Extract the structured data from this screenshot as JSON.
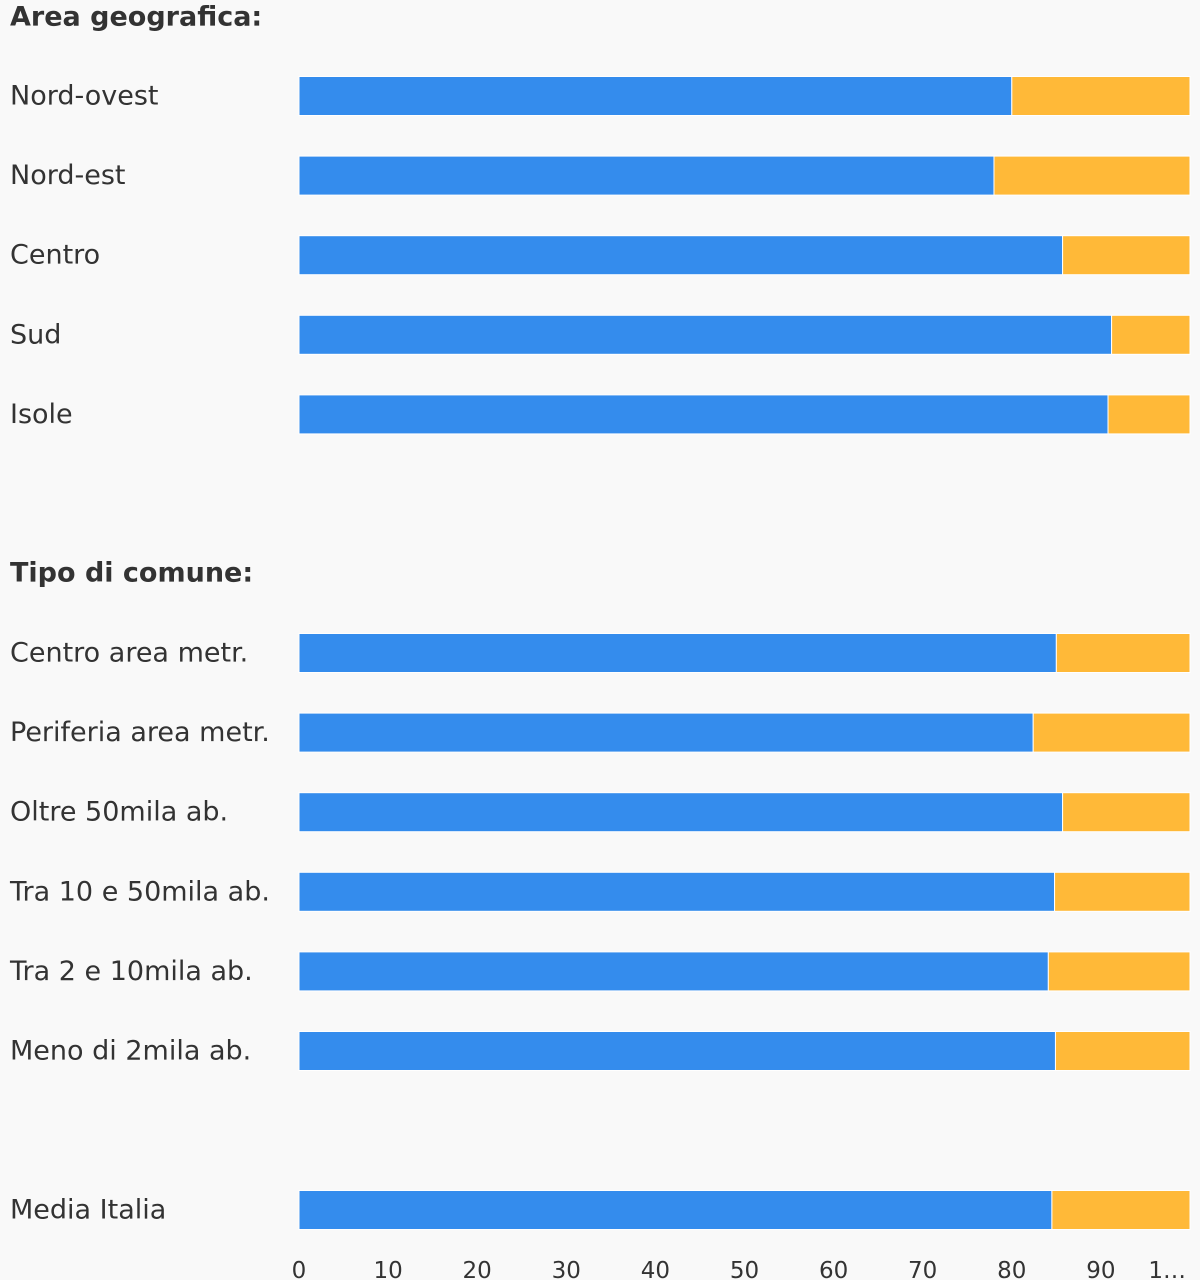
{
  "chart_data": {
    "type": "bar",
    "orientation": "horizontal",
    "stacked": true,
    "xlim": [
      0,
      100
    ],
    "x_ticks": [
      "0",
      "10",
      "20",
      "30",
      "40",
      "50",
      "60",
      "70",
      "80",
      "90",
      "1…"
    ],
    "grid": false,
    "colors": [
      "#348ced",
      "#ffb938"
    ],
    "groups": [
      {
        "header": "Area geografica:",
        "rows": [
          {
            "label": "Nord-ovest",
            "values": [
              80.0,
              20.0
            ]
          },
          {
            "label": "Nord-est",
            "values": [
              78.0,
              22.0
            ]
          },
          {
            "label": "Centro",
            "values": [
              85.7,
              14.3
            ]
          },
          {
            "label": "Sud",
            "values": [
              91.2,
              8.8
            ]
          },
          {
            "label": "Isole",
            "values": [
              90.8,
              9.2
            ]
          }
        ]
      },
      {
        "header": "Tipo di comune:",
        "rows": [
          {
            "label": "Centro area metr.",
            "values": [
              85.0,
              15.0
            ]
          },
          {
            "label": "Periferia area metr.",
            "values": [
              82.4,
              17.6
            ]
          },
          {
            "label": "Oltre 50mila ab.",
            "values": [
              85.7,
              14.3
            ]
          },
          {
            "label": "Tra 10 e 50mila ab.",
            "values": [
              84.8,
              15.2
            ]
          },
          {
            "label": "Tra 2 e 10mila ab.",
            "values": [
              84.1,
              15.9
            ]
          },
          {
            "label": "Meno di 2mila ab.",
            "values": [
              84.9,
              15.1
            ]
          }
        ]
      },
      {
        "header": "",
        "rows": [
          {
            "label": "Media Italia",
            "values": [
              84.5,
              15.5
            ]
          }
        ]
      }
    ]
  }
}
